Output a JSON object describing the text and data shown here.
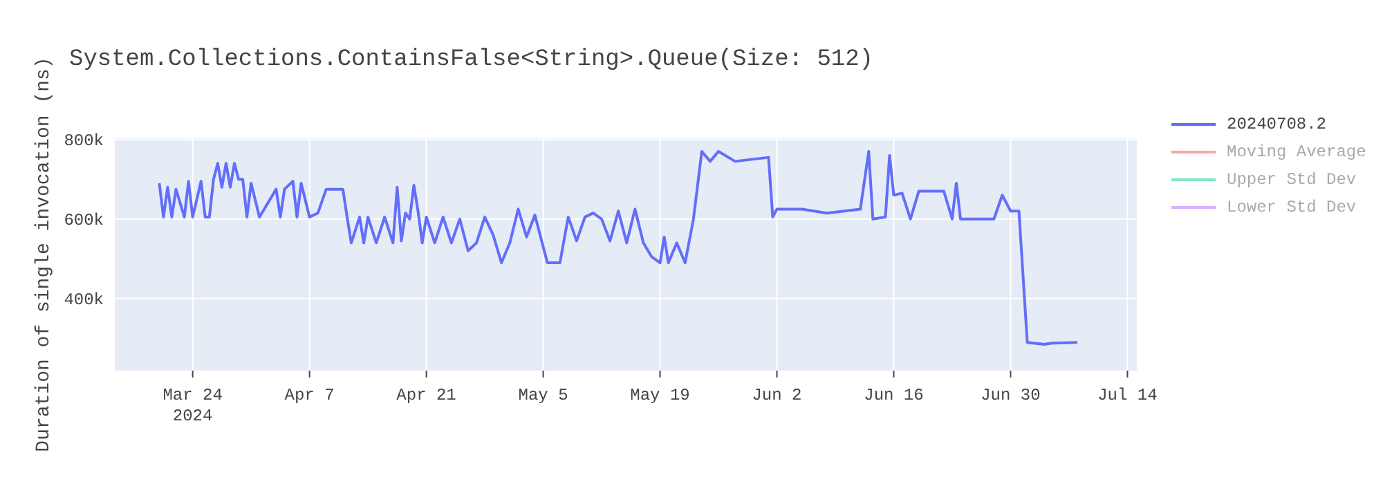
{
  "chart_data": {
    "type": "line",
    "title": "System.Collections.ContainsFalse<String>.Queue(Size: 512)",
    "ylabel": "Duration of single invocation (ns)",
    "x": [
      "2024-03-20",
      "2024-03-20T12:00",
      "2024-03-21",
      "2024-03-21T12:00",
      "2024-03-22",
      "2024-03-23",
      "2024-03-23T12:00",
      "2024-03-24",
      "2024-03-25",
      "2024-03-25T12:00",
      "2024-03-26",
      "2024-03-26T12:00",
      "2024-03-27",
      "2024-03-27T12:00",
      "2024-03-28",
      "2024-03-28T12:00",
      "2024-03-29",
      "2024-03-29T12:00",
      "2024-03-30",
      "2024-03-30T12:00",
      "2024-03-31",
      "2024-04-01",
      "2024-04-03",
      "2024-04-03T12:00",
      "2024-04-04",
      "2024-04-05",
      "2024-04-05T12:00",
      "2024-04-06",
      "2024-04-07",
      "2024-04-08",
      "2024-04-09",
      "2024-04-11",
      "2024-04-11T12:00",
      "2024-04-12",
      "2024-04-13",
      "2024-04-13T12:00",
      "2024-04-14",
      "2024-04-15",
      "2024-04-16",
      "2024-04-17",
      "2024-04-17T12:00",
      "2024-04-18",
      "2024-04-18T12:00",
      "2024-04-19",
      "2024-04-19T12:00",
      "2024-04-20",
      "2024-04-20T12:00",
      "2024-04-21",
      "2024-04-22",
      "2024-04-23",
      "2024-04-24",
      "2024-04-25",
      "2024-04-26",
      "2024-04-27",
      "2024-04-28",
      "2024-04-29",
      "2024-04-30",
      "2024-05-01",
      "2024-05-02",
      "2024-05-03",
      "2024-05-04",
      "2024-05-05T12:00",
      "2024-05-07",
      "2024-05-08",
      "2024-05-09",
      "2024-05-10",
      "2024-05-11",
      "2024-05-12",
      "2024-05-13",
      "2024-05-14",
      "2024-05-15",
      "2024-05-16",
      "2024-05-17",
      "2024-05-18",
      "2024-05-19",
      "2024-05-19T12:00",
      "2024-05-20",
      "2024-05-21",
      "2024-05-22",
      "2024-05-23",
      "2024-05-24",
      "2024-05-25",
      "2024-05-26",
      "2024-05-28",
      "2024-06-01",
      "2024-06-01T12:00",
      "2024-06-02",
      "2024-06-05",
      "2024-06-08",
      "2024-06-12",
      "2024-06-13",
      "2024-06-13T12:00",
      "2024-06-15",
      "2024-06-15T12:00",
      "2024-06-16",
      "2024-06-17",
      "2024-06-18",
      "2024-06-19",
      "2024-06-22",
      "2024-06-23",
      "2024-06-23T12:00",
      "2024-06-24",
      "2024-06-28",
      "2024-06-29",
      "2024-06-30",
      "2024-07-01",
      "2024-07-02",
      "2024-07-04",
      "2024-07-05",
      "2024-07-08"
    ],
    "series": [
      {
        "name": "20240708.2",
        "color": "#636efa",
        "values": [
          690000,
          605000,
          680000,
          605000,
          675000,
          605000,
          695000,
          605000,
          695000,
          605000,
          605000,
          700000,
          740000,
          680000,
          740000,
          680000,
          740000,
          700000,
          700000,
          605000,
          690000,
          605000,
          675000,
          605000,
          675000,
          695000,
          605000,
          690000,
          605000,
          615000,
          675000,
          675000,
          605000,
          540000,
          605000,
          540000,
          605000,
          540000,
          605000,
          540000,
          680000,
          545000,
          615000,
          600000,
          685000,
          620000,
          540000,
          605000,
          540000,
          605000,
          540000,
          600000,
          520000,
          540000,
          605000,
          560000,
          490000,
          540000,
          625000,
          555000,
          610000,
          490000,
          490000,
          605000,
          545000,
          605000,
          615000,
          600000,
          545000,
          620000,
          540000,
          625000,
          540000,
          505000,
          490000,
          555000,
          490000,
          540000,
          490000,
          600000,
          770000,
          745000,
          770000,
          745000,
          755000,
          605000,
          625000,
          625000,
          615000,
          625000,
          770000,
          600000,
          605000,
          760000,
          660000,
          665000,
          600000,
          670000,
          670000,
          600000,
          690000,
          600000,
          600000,
          660000,
          620000,
          620000,
          290000,
          285000,
          288000,
          290000
        ]
      },
      {
        "name": "Moving Average",
        "color": "#f7aa9d",
        "values": [
          null,
          null,
          null,
          null,
          null,
          null,
          null,
          null,
          null,
          null,
          null,
          null,
          null,
          null,
          null,
          null,
          null,
          null,
          null,
          null,
          null,
          null,
          null,
          null,
          null,
          null,
          null,
          null,
          null,
          null,
          null,
          null,
          null,
          null,
          null,
          null,
          null,
          null,
          null,
          null,
          null,
          null,
          null,
          null,
          null,
          null,
          null,
          null,
          null,
          null,
          null,
          null,
          null,
          null,
          null,
          null,
          null,
          null,
          null,
          null,
          null,
          null,
          null,
          null,
          null,
          null,
          null,
          null,
          null,
          null,
          null,
          null,
          null,
          null,
          null,
          null,
          null,
          null,
          null,
          null,
          null,
          null,
          null,
          null,
          null,
          null,
          null,
          null,
          null,
          null,
          null,
          null,
          null,
          null,
          null,
          null,
          null,
          null,
          null,
          null,
          null,
          null,
          null,
          null,
          null,
          null,
          null,
          null,
          null,
          null
        ]
      },
      {
        "name": "Upper Std Dev",
        "color": "#80e5cb",
        "values": [
          null,
          null,
          null,
          null,
          null,
          null,
          null,
          null,
          null,
          null,
          null,
          null,
          null,
          null,
          null,
          null,
          null,
          null,
          null,
          null,
          null,
          null,
          null,
          null,
          null,
          null,
          null,
          null,
          null,
          null,
          null,
          null,
          null,
          null,
          null,
          null,
          null,
          null,
          null,
          null,
          null,
          null,
          null,
          null,
          null,
          null,
          null,
          null,
          null,
          null,
          null,
          null,
          null,
          null,
          null,
          null,
          null,
          null,
          null,
          null,
          null,
          null,
          null,
          null,
          null,
          null,
          null,
          null,
          null,
          null,
          null,
          null,
          null,
          null,
          null,
          null,
          null,
          null,
          null,
          null,
          null,
          null,
          null,
          null,
          null,
          null,
          null,
          null,
          null,
          null,
          null,
          null,
          null,
          null,
          null,
          null,
          null,
          null,
          null,
          null,
          null,
          null,
          null,
          null,
          null,
          null,
          null,
          null,
          null,
          null
        ]
      },
      {
        "name": "Lower Std Dev",
        "color": "#d5b1fc",
        "values": [
          null,
          null,
          null,
          null,
          null,
          null,
          null,
          null,
          null,
          null,
          null,
          null,
          null,
          null,
          null,
          null,
          null,
          null,
          null,
          null,
          null,
          null,
          null,
          null,
          null,
          null,
          null,
          null,
          null,
          null,
          null,
          null,
          null,
          null,
          null,
          null,
          null,
          null,
          null,
          null,
          null,
          null,
          null,
          null,
          null,
          null,
          null,
          null,
          null,
          null,
          null,
          null,
          null,
          null,
          null,
          null,
          null,
          null,
          null,
          null,
          null,
          null,
          null,
          null,
          null,
          null,
          null,
          null,
          null,
          null,
          null,
          null,
          null,
          null,
          null,
          null,
          null,
          null,
          null,
          null,
          null,
          null,
          null,
          null,
          null,
          null,
          null,
          null,
          null,
          null,
          null,
          null,
          null,
          null,
          null,
          null,
          null,
          null,
          null,
          null,
          null,
          null,
          null,
          null,
          null,
          null,
          null,
          null,
          null,
          null
        ]
      }
    ],
    "xlim": [
      "2024-03-14T16:00",
      "2024-07-15T03:00"
    ],
    "xticks": [
      {
        "value": "2024-03-24",
        "label": "Mar 24\n2024"
      },
      {
        "value": "2024-04-07",
        "label": "Apr 7"
      },
      {
        "value": "2024-04-21",
        "label": "Apr 21"
      },
      {
        "value": "2024-05-05",
        "label": "May 5"
      },
      {
        "value": "2024-05-19",
        "label": "May 19"
      },
      {
        "value": "2024-06-02",
        "label": "Jun 2"
      },
      {
        "value": "2024-06-16",
        "label": "Jun 16"
      },
      {
        "value": "2024-06-30",
        "label": "Jun 30"
      },
      {
        "value": "2024-07-14",
        "label": "Jul 14"
      }
    ],
    "ylim": [
      219000,
      803000
    ],
    "yticks": [
      {
        "value": 400000,
        "label": "400k"
      },
      {
        "value": 600000,
        "label": "600k"
      },
      {
        "value": 800000,
        "label": "800k"
      }
    ],
    "grid": true,
    "legend": "top right",
    "marker": "none",
    "line_style": "solid"
  }
}
